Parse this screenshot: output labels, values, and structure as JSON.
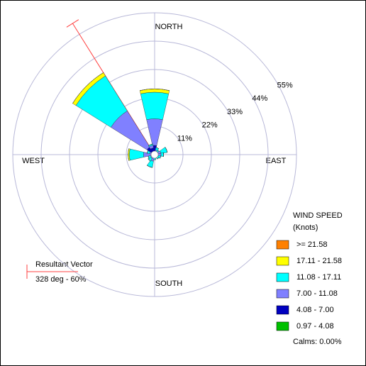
{
  "chart_data": {
    "type": "windrose",
    "compass": [
      "NORTH",
      "EAST",
      "SOUTH",
      "WEST"
    ],
    "directions": [
      0,
      22.5,
      45,
      67.5,
      90,
      112.5,
      135,
      157.5,
      180,
      202.5,
      225,
      247.5,
      270,
      292.5,
      315,
      337.5
    ],
    "rlim": [
      0,
      55
    ],
    "rticks": [
      {
        "value": 11,
        "label": "11%"
      },
      {
        "value": 22,
        "label": "22%"
      },
      {
        "value": 33,
        "label": "33%"
      },
      {
        "value": 44,
        "label": "44%"
      },
      {
        "value": 55,
        "label": "55%"
      }
    ],
    "legend_title": [
      "WIND SPEED",
      "(Knots)"
    ],
    "series": [
      {
        "name": ">= 21.58",
        "color": "#ff8000",
        "values": [
          0,
          0,
          0,
          0,
          0,
          0,
          0,
          0,
          0,
          0,
          0,
          0,
          0,
          0,
          0,
          0
        ]
      },
      {
        "name": "17.11 - 21.58",
        "color": "#ffff00",
        "values": [
          1.3,
          0,
          0,
          0,
          0,
          0,
          0,
          0,
          0,
          0,
          0,
          0,
          0.5,
          0,
          1.5,
          0
        ]
      },
      {
        "name": "11.08 - 17.11",
        "color": "#00ffff",
        "values": [
          10.3,
          1,
          0.6,
          2.5,
          1,
          1,
          0.7,
          0.5,
          0.7,
          2.5,
          1.2,
          1,
          5.5,
          1,
          16,
          0.5
        ]
      },
      {
        "name": "7.00 - 11.08",
        "color": "#8080ff",
        "values": [
          10.3,
          0.8,
          0.7,
          1.5,
          1.5,
          0.8,
          0.6,
          0.5,
          0.6,
          1.5,
          1,
          0.8,
          3,
          1,
          16.5,
          1
        ]
      },
      {
        "name": "4.08 - 7.00",
        "color": "#0000c0",
        "values": [
          3.3,
          0.8,
          0.6,
          0.7,
          0.7,
          0.5,
          0.5,
          0.4,
          0.5,
          0.8,
          0.6,
          0.6,
          1,
          0.8,
          3.2,
          2.5
        ]
      },
      {
        "name": "0.97 - 4.08",
        "color": "#00c000",
        "values": [
          0.3,
          0.2,
          0.2,
          0.3,
          0.3,
          0.2,
          0.2,
          0.1,
          0.2,
          0.3,
          0.2,
          0.2,
          0.3,
          0.2,
          0.3,
          0.2
        ]
      }
    ],
    "calms": {
      "value": 0,
      "label": "Calms: 0.00%"
    },
    "resultant": {
      "title": "Resultant Vector",
      "direction": 328,
      "magnitude": 60,
      "label": "328 deg - 60%",
      "color": "#ff4040"
    }
  }
}
